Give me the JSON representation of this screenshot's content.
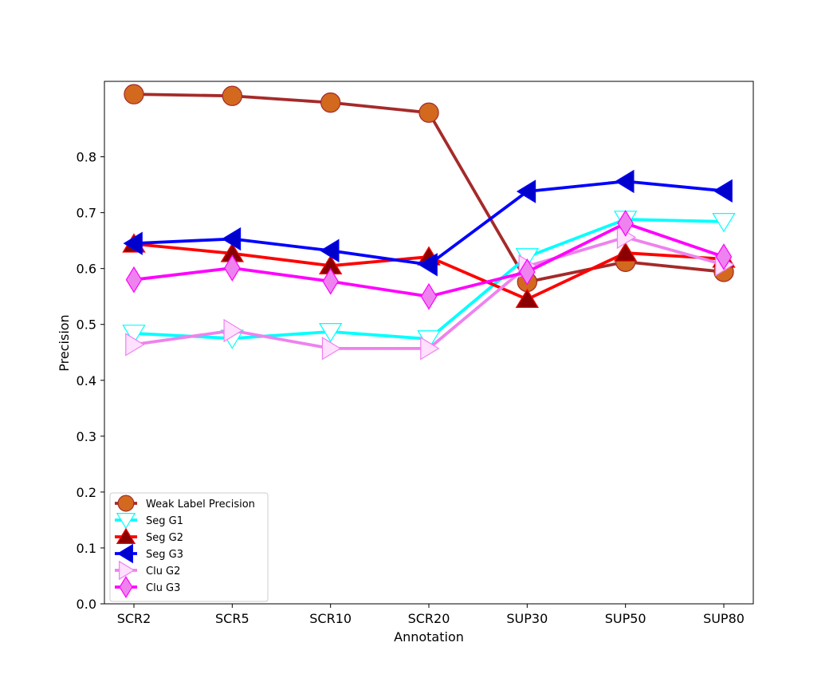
{
  "chart_data": {
    "type": "line",
    "xlabel": "Annotation",
    "ylabel": "Precision",
    "categories": [
      "SCR2",
      "SCR5",
      "SCR10",
      "SCR20",
      "SUP30",
      "SUP50",
      "SUP80"
    ],
    "ylim": [
      0,
      0.935
    ],
    "yticks": [
      0.0,
      0.1,
      0.2,
      0.3,
      0.4,
      0.5,
      0.6,
      0.7,
      0.8
    ],
    "ytick_labels": [
      "0.0",
      "0.1",
      "0.2",
      "0.3",
      "0.4",
      "0.5",
      "0.6",
      "0.7",
      "0.8"
    ],
    "grid": false,
    "legend_position": "lower-left",
    "series": [
      {
        "name": "Weak Label Precision",
        "color": "#a52a2a",
        "marker": "circle",
        "marker_fill": "#d2691e",
        "marker_edge": "#a52a2a",
        "values": [
          0.912,
          0.909,
          0.897,
          0.879,
          0.576,
          0.612,
          0.594
        ]
      },
      {
        "name": "Seg G1",
        "color": "#00ffff",
        "marker": "triangle-down",
        "marker_fill": "#ffffff",
        "marker_edge": "#00ffff",
        "values": [
          0.484,
          0.475,
          0.487,
          0.474,
          0.621,
          0.688,
          0.684
        ]
      },
      {
        "name": "Seg G2",
        "color": "#ff0000",
        "marker": "triangle-up",
        "marker_fill": "#8b0000",
        "marker_edge": "#ff0000",
        "values": [
          0.644,
          0.627,
          0.605,
          0.621,
          0.545,
          0.628,
          0.617
        ]
      },
      {
        "name": "Seg G3",
        "color": "#0000ff",
        "marker": "triangle-left",
        "marker_fill": "#0000cd",
        "marker_edge": "#0000ff",
        "values": [
          0.645,
          0.653,
          0.632,
          0.607,
          0.738,
          0.756,
          0.739
        ]
      },
      {
        "name": "Clu G2",
        "color": "#ee82ee",
        "marker": "triangle-right",
        "marker_fill": "#ffe0ff",
        "marker_edge": "#ee82ee",
        "values": [
          0.464,
          0.489,
          0.457,
          0.457,
          0.604,
          0.656,
          0.607
        ]
      },
      {
        "name": "Clu G3",
        "color": "#ff00ff",
        "marker": "diamond",
        "marker_fill": "#ee82ee",
        "marker_edge": "#ff00ff",
        "values": [
          0.58,
          0.601,
          0.577,
          0.55,
          0.594,
          0.681,
          0.621
        ]
      }
    ]
  }
}
